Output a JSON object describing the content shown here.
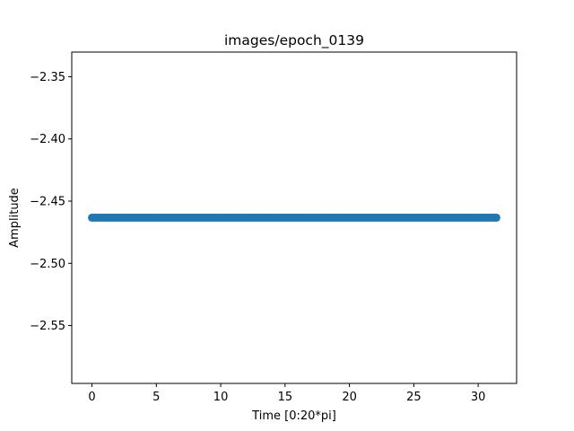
{
  "chart_data": {
    "type": "scatter",
    "title": "images/epoch_0139",
    "xlabel": "Time [0:20*pi]",
    "ylabel": "Amplitude",
    "xlim": [
      -1.571,
      32.987
    ],
    "ylim": [
      -2.5965,
      -2.3302
    ],
    "x_ticks": [
      0,
      5,
      10,
      15,
      20,
      25,
      30
    ],
    "x_tick_labels": [
      "0",
      "5",
      "10",
      "15",
      "20",
      "25",
      "30"
    ],
    "y_ticks": [
      -2.55,
      -2.5,
      -2.45,
      -2.4,
      -2.35
    ],
    "y_tick_labels": [
      "−2.55",
      "−2.50",
      "−2.45",
      "−2.40",
      "−2.35"
    ],
    "series": [
      {
        "name": "amplitude",
        "color": "#1f77b4",
        "x_start": 0,
        "x_end": 31.4159,
        "n_points": 200,
        "y_constant": -2.4633
      }
    ],
    "grid": false,
    "legend": "none"
  }
}
